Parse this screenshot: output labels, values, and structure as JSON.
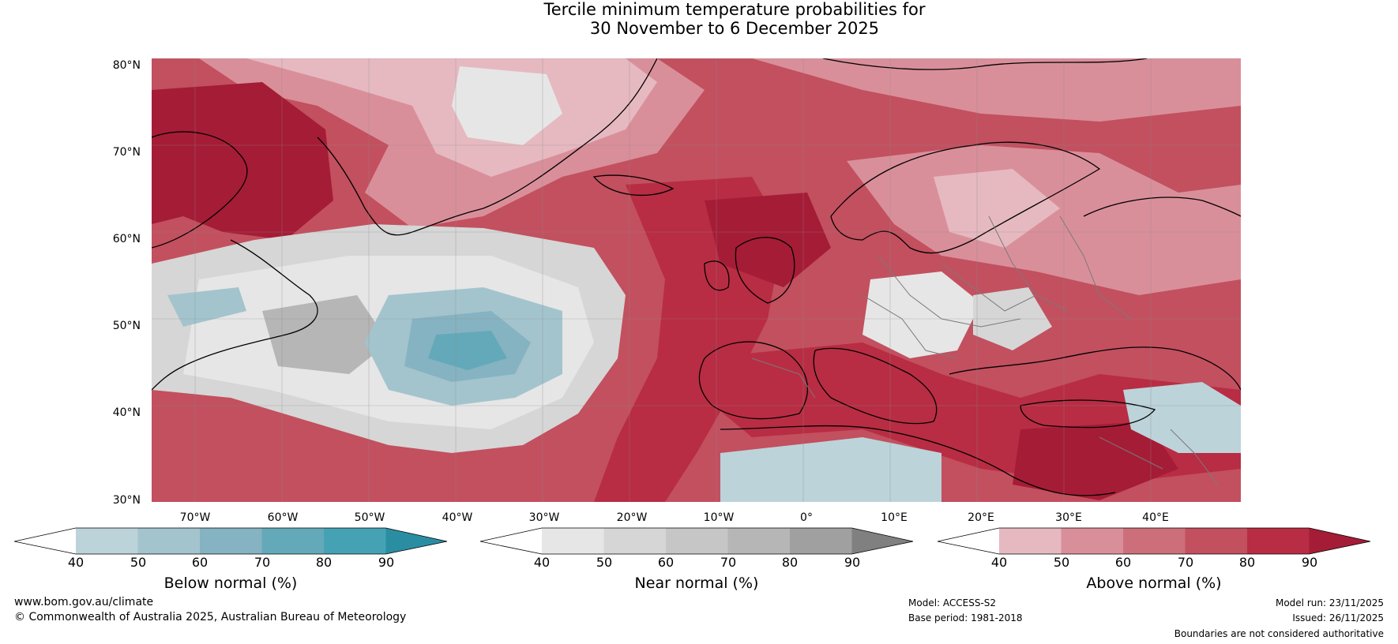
{
  "title": {
    "line1": "Tercile minimum temperature probabilities for",
    "line2": "30 November to 6 December 2025"
  },
  "map": {
    "lat_labels": [
      "80°N",
      "70°N",
      "60°N",
      "50°N",
      "40°N",
      "30°N"
    ],
    "lon_labels": [
      "70°W",
      "60°W",
      "50°W",
      "40°W",
      "30°W",
      "20°W",
      "10°W",
      "0°",
      "10°E",
      "20°E",
      "30°E",
      "40°E"
    ]
  },
  "colorbars": [
    {
      "label": "Below normal (%)",
      "ticks": [
        "40",
        "50",
        "60",
        "70",
        "80",
        "90"
      ],
      "colors": [
        "#ffffff",
        "#bcd3da",
        "#a3c4cd",
        "#86b3c1",
        "#64a9b9",
        "#45a2b4",
        "#2b8da2"
      ]
    },
    {
      "label": "Near normal (%)",
      "ticks": [
        "40",
        "50",
        "60",
        "70",
        "80",
        "90"
      ],
      "colors": [
        "#ffffff",
        "#e6e6e6",
        "#d6d6d6",
        "#c6c6c6",
        "#b6b6b6",
        "#a0a0a0",
        "#808080"
      ]
    },
    {
      "label": "Above normal (%)",
      "ticks": [
        "40",
        "50",
        "60",
        "70",
        "80",
        "90"
      ],
      "colors": [
        "#ffffff",
        "#e6b9c1",
        "#d98f9a",
        "#cd6f7b",
        "#c2505f",
        "#b82d43",
        "#a51c36"
      ]
    }
  ],
  "footer": {
    "website": "www.bom.gov.au/climate",
    "copyright": "© Commonwealth of Australia 2025, Australian Bureau of Meteorology",
    "model": "Model: ACCESS-S2",
    "base_period": "Base period: 1981-2018",
    "model_run": "Model run: 23/11/2025",
    "issued": "Issued: 26/11/2025",
    "disclaimer": "Boundaries are not considered authoritative"
  }
}
